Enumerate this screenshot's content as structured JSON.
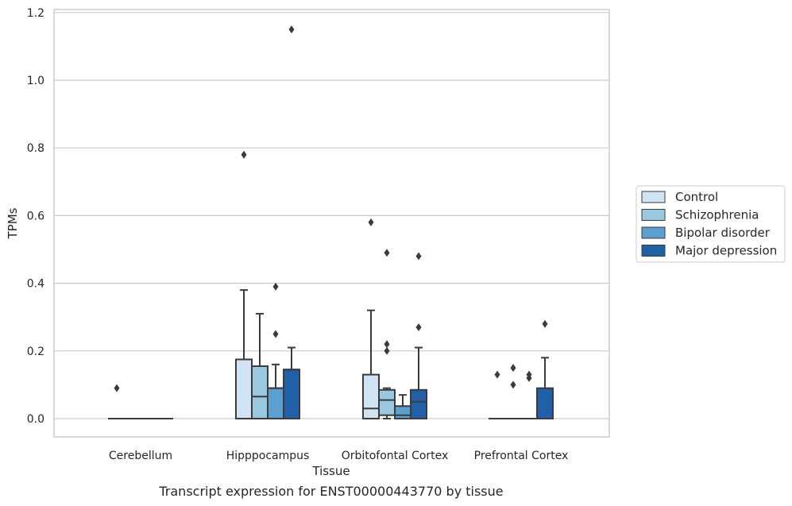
{
  "chart_data": {
    "type": "box",
    "caption": "Transcript expression for ENST00000443770 by tissue",
    "xlabel": "Tissue",
    "ylabel": "TPMs",
    "ylim": [
      -0.055,
      1.21
    ],
    "yticks": [
      "0.0",
      "0.2",
      "0.4",
      "0.6",
      "0.8",
      "1.0",
      "1.2"
    ],
    "grid": true,
    "legend_position": "right",
    "categories": [
      "Cerebellum",
      "Hipppocampus",
      "Orbitofontal Cortex",
      "Prefrontal Cortex"
    ],
    "series": [
      {
        "name": "Control",
        "color": "#d2e3f3",
        "boxes": [
          {
            "q1": 0,
            "median": 0,
            "q3": 0,
            "whisker_low": 0,
            "whisker_high": 0,
            "outliers": [
              0.09
            ]
          },
          {
            "q1": 0,
            "median": 0,
            "q3": 0.175,
            "whisker_low": 0,
            "whisker_high": 0.38,
            "outliers": [
              0.78
            ]
          },
          {
            "q1": 0,
            "median": 0.03,
            "q3": 0.13,
            "whisker_low": 0,
            "whisker_high": 0.32,
            "outliers": [
              0.58
            ]
          },
          {
            "q1": 0,
            "median": 0,
            "q3": 0,
            "whisker_low": 0,
            "whisker_high": 0,
            "outliers": [
              0.13
            ]
          }
        ]
      },
      {
        "name": "Schizophrenia",
        "color": "#9ac8e0",
        "boxes": [
          {
            "q1": 0,
            "median": 0,
            "q3": 0,
            "whisker_low": 0,
            "whisker_high": 0,
            "outliers": []
          },
          {
            "q1": 0,
            "median": 0.065,
            "q3": 0.155,
            "whisker_low": 0,
            "whisker_high": 0.31,
            "outliers": []
          },
          {
            "q1": 0.01,
            "median": 0.055,
            "q3": 0.085,
            "whisker_low": 0,
            "whisker_high": 0.09,
            "outliers": [
              0.49,
              0.22,
              0.2
            ]
          },
          {
            "q1": 0,
            "median": 0,
            "q3": 0,
            "whisker_low": 0,
            "whisker_high": 0,
            "outliers": [
              0.15,
              0.1
            ]
          }
        ]
      },
      {
        "name": "Bipolar disorder",
        "color": "#5a9fcf",
        "boxes": [
          {
            "q1": 0,
            "median": 0,
            "q3": 0,
            "whisker_low": 0,
            "whisker_high": 0,
            "outliers": []
          },
          {
            "q1": 0,
            "median": 0.09,
            "q3": 0.09,
            "whisker_low": 0,
            "whisker_high": 0.16,
            "outliers": [
              0.39,
              0.25
            ]
          },
          {
            "q1": 0,
            "median": 0.01,
            "q3": 0.037,
            "whisker_low": 0,
            "whisker_high": 0.07,
            "outliers": []
          },
          {
            "q1": 0,
            "median": 0,
            "q3": 0,
            "whisker_low": 0,
            "whisker_high": 0,
            "outliers": [
              0.13,
              0.12
            ]
          }
        ]
      },
      {
        "name": "Major depression",
        "color": "#2060a8",
        "boxes": [
          {
            "q1": 0,
            "median": 0,
            "q3": 0,
            "whisker_low": 0,
            "whisker_high": 0,
            "outliers": []
          },
          {
            "q1": 0,
            "median": 0.145,
            "q3": 0.145,
            "whisker_low": 0,
            "whisker_high": 0.21,
            "outliers": [
              1.15
            ]
          },
          {
            "q1": 0,
            "median": 0.05,
            "q3": 0.085,
            "whisker_low": 0,
            "whisker_high": 0.21,
            "outliers": [
              0.48,
              0.27
            ]
          },
          {
            "q1": 0,
            "median": 0,
            "q3": 0.09,
            "whisker_low": 0,
            "whisker_high": 0.18,
            "outliers": [
              0.28
            ]
          }
        ]
      }
    ]
  }
}
